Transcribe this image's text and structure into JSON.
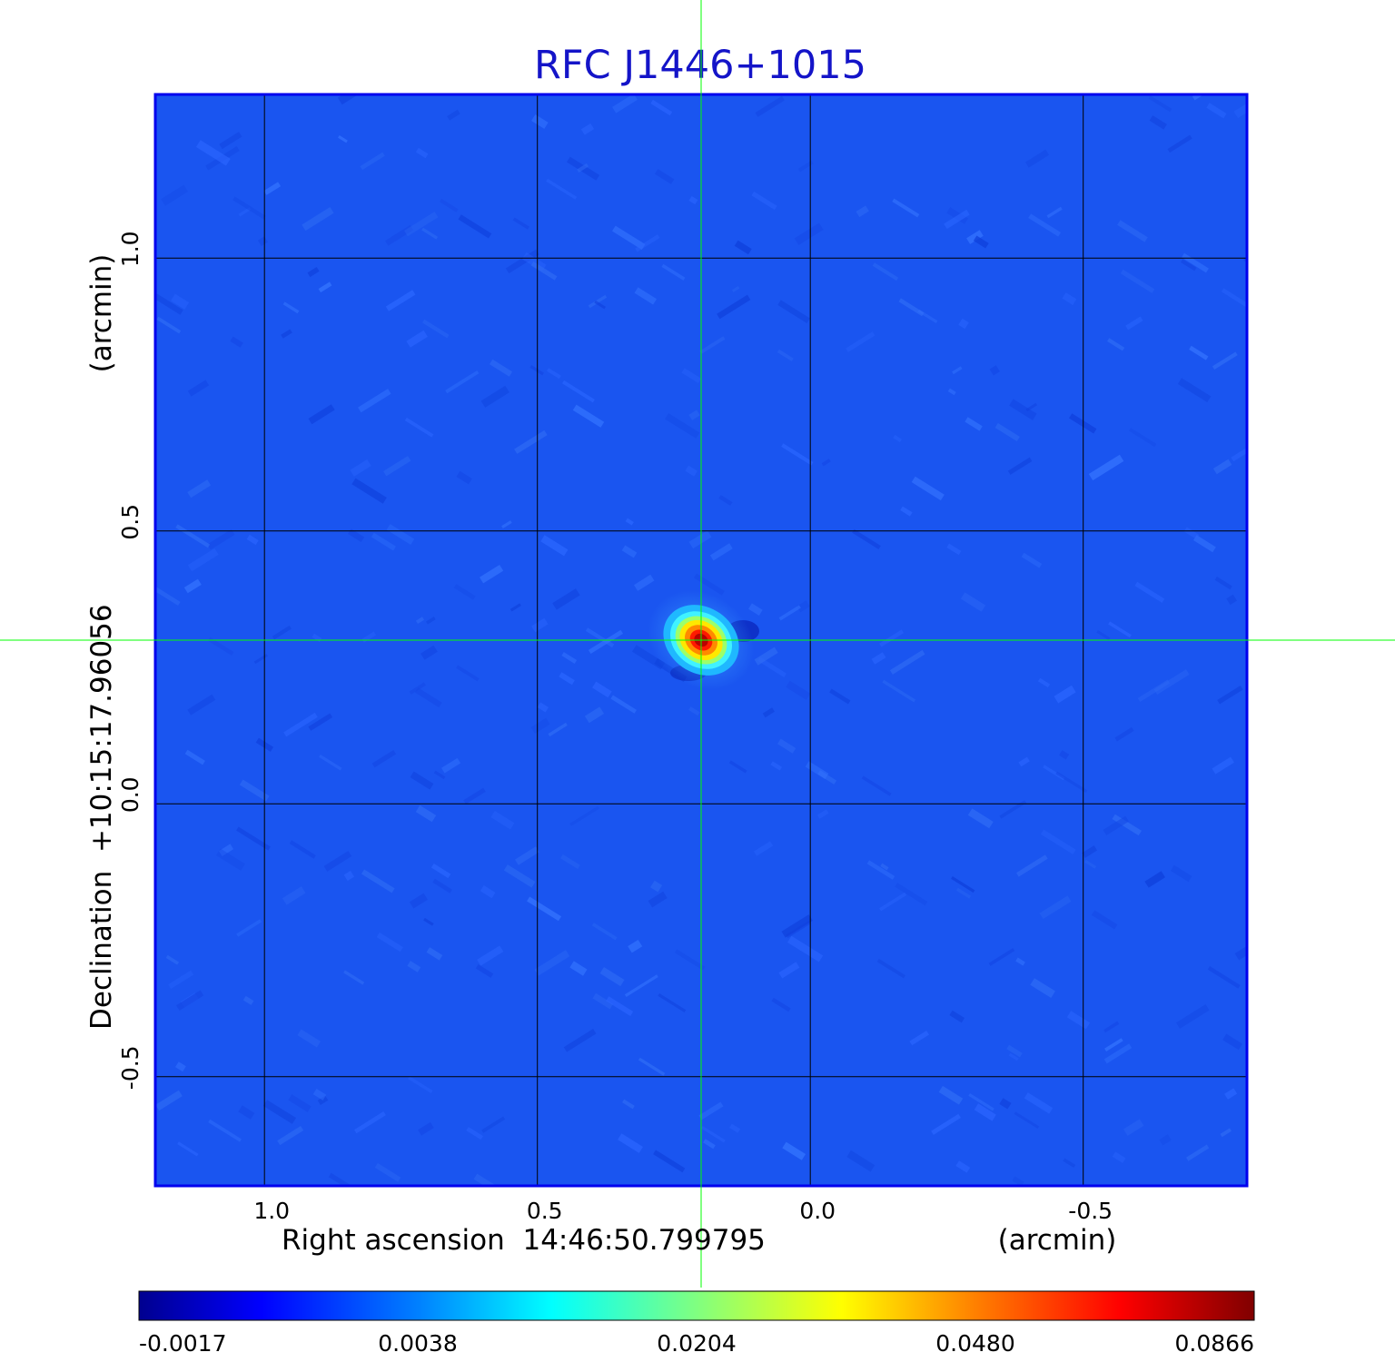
{
  "chart_data": {
    "type": "heatmap",
    "title": "RFC J1446+1015",
    "xlabel": "Right ascension  14:46:50.799795",
    "xunit": "(arcmin)",
    "ylabel": "Declination  +10:15:17.96056",
    "yunit": "(arcmin)",
    "xlim": [
      1.2,
      -0.8
    ],
    "ylim": [
      -0.7,
      1.3
    ],
    "x_ticks": [
      1.0,
      0.5,
      0.0,
      -0.5
    ],
    "x_tick_labels": [
      "1.0",
      "0.5",
      "0.0",
      "-0.5"
    ],
    "y_ticks": [
      -0.5,
      0.0,
      0.5,
      1.0
    ],
    "y_tick_labels": [
      "-0.5",
      "0.0",
      "0.5",
      "1.0"
    ],
    "grid": true,
    "crosshair": {
      "x": 0.2,
      "y": 0.3,
      "color": "#00ff00"
    },
    "source": {
      "x": 0.2,
      "y": 0.3,
      "peak": 0.0866
    },
    "background_level": 0.0,
    "colorbar": {
      "orientation": "horizontal",
      "placement": "bottom",
      "colormap": "jet",
      "range": [
        -0.0017,
        0.0866
      ],
      "tick_labels": [
        "-0.0017",
        "0.0038",
        "0.0204",
        "0.0480",
        "0.0866"
      ]
    },
    "colors": {
      "title": "#1414c8",
      "frame": "#0000ee",
      "grid": "#000000"
    }
  }
}
